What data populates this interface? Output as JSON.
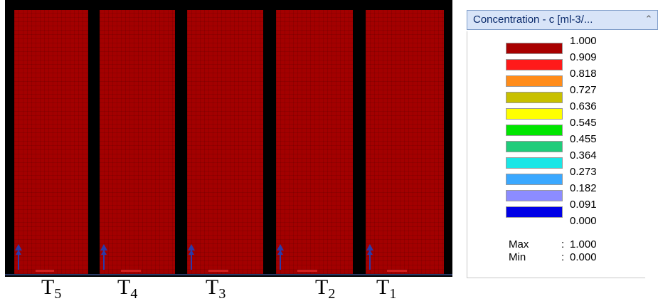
{
  "view": {
    "columns": [
      {
        "id": "T5",
        "label": "T",
        "sub": "5"
      },
      {
        "id": "T4",
        "label": "T",
        "sub": "4"
      },
      {
        "id": "T3",
        "label": "T",
        "sub": "3"
      },
      {
        "id": "T2",
        "label": "T",
        "sub": "2"
      },
      {
        "id": "T1",
        "label": "T",
        "sub": "1"
      }
    ],
    "fill_color": "#a30000",
    "arrow_color": "#2b3aa8"
  },
  "legend": {
    "title": "Concentration - c [ml-3/...",
    "collapse_icon": "chevron-double-up-icon",
    "levels": [
      {
        "value": "1.000"
      },
      {
        "value": "0.909",
        "color": "#a80000"
      },
      {
        "value": "0.818",
        "color": "#ff1a1a"
      },
      {
        "value": "0.727",
        "color": "#ff8c1a"
      },
      {
        "value": "0.636",
        "color": "#c8c000"
      },
      {
        "value": "0.545",
        "color": "#ffff00"
      },
      {
        "value": "0.455",
        "color": "#00e600"
      },
      {
        "value": "0.364",
        "color": "#1fcc7a"
      },
      {
        "value": "0.273",
        "color": "#1ae6e6"
      },
      {
        "value": "0.182",
        "color": "#3aa8ff"
      },
      {
        "value": "0.091",
        "color": "#8c8cff"
      },
      {
        "value": "0.000",
        "color": "#0000e6"
      }
    ],
    "max_label": "Max",
    "max_value": "1.000",
    "min_label": "Min",
    "min_value": "0.000",
    "colon": ":"
  }
}
